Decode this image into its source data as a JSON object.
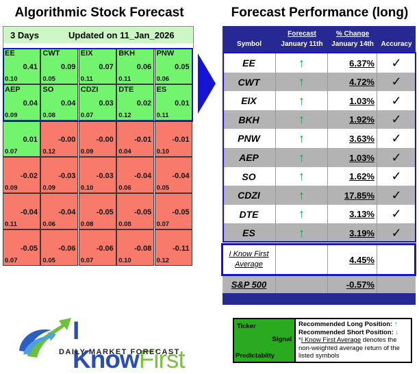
{
  "left_panel": {
    "title": "Algorithmic Stock Forecast",
    "horizon": "3 Days",
    "updated": "Updated on 11_Jan_2026",
    "cells": [
      {
        "symbol": "EE",
        "signal": "0.41",
        "predictability": "0.10",
        "color": "green"
      },
      {
        "symbol": "CWT",
        "signal": "0.09",
        "predictability": "0.05",
        "color": "green"
      },
      {
        "symbol": "EIX",
        "signal": "0.07",
        "predictability": "0.11",
        "color": "green"
      },
      {
        "symbol": "BKH",
        "signal": "0.06",
        "predictability": "0.11",
        "color": "green"
      },
      {
        "symbol": "PNW",
        "signal": "0.05",
        "predictability": "0.06",
        "color": "green"
      },
      {
        "symbol": "AEP",
        "signal": "0.04",
        "predictability": "0.09",
        "color": "green"
      },
      {
        "symbol": "SO",
        "signal": "0.04",
        "predictability": "0.08",
        "color": "green"
      },
      {
        "symbol": "CDZI",
        "signal": "0.03",
        "predictability": "0.07",
        "color": "green"
      },
      {
        "symbol": "DTE",
        "signal": "0.02",
        "predictability": "0.12",
        "color": "green"
      },
      {
        "symbol": "ES",
        "signal": "0.01",
        "predictability": "0.11",
        "color": "green"
      },
      {
        "symbol": "",
        "signal": "0.01",
        "predictability": "0.07",
        "color": "green"
      },
      {
        "symbol": "",
        "signal": "-0.00",
        "predictability": "0.12",
        "color": "red"
      },
      {
        "symbol": "",
        "signal": "-0.00",
        "predictability": "0.09",
        "color": "red"
      },
      {
        "symbol": "",
        "signal": "-0.01",
        "predictability": "0.04",
        "color": "red"
      },
      {
        "symbol": "",
        "signal": "-0.01",
        "predictability": "0.10",
        "color": "red"
      },
      {
        "symbol": "",
        "signal": "-0.02",
        "predictability": "0.09",
        "color": "red"
      },
      {
        "symbol": "",
        "signal": "-0.03",
        "predictability": "0.09",
        "color": "red"
      },
      {
        "symbol": "",
        "signal": "-0.03",
        "predictability": "0.10",
        "color": "red"
      },
      {
        "symbol": "",
        "signal": "-0.04",
        "predictability": "0.06",
        "color": "red"
      },
      {
        "symbol": "",
        "signal": "-0.04",
        "predictability": "0.05",
        "color": "red"
      },
      {
        "symbol": "",
        "signal": "-0.04",
        "predictability": "0.11",
        "color": "red"
      },
      {
        "symbol": "",
        "signal": "-0.04",
        "predictability": "0.06",
        "color": "red"
      },
      {
        "symbol": "",
        "signal": "-0.05",
        "predictability": "0.08",
        "color": "red"
      },
      {
        "symbol": "",
        "signal": "-0.05",
        "predictability": "0.08",
        "color": "red"
      },
      {
        "symbol": "",
        "signal": "-0.05",
        "predictability": "0.07",
        "color": "red"
      },
      {
        "symbol": "",
        "signal": "-0.05",
        "predictability": "0.07",
        "color": "red"
      },
      {
        "symbol": "",
        "signal": "-0.06",
        "predictability": "0.05",
        "color": "red"
      },
      {
        "symbol": "",
        "signal": "-0.06",
        "predictability": "0.07",
        "color": "red"
      },
      {
        "symbol": "",
        "signal": "-0.08",
        "predictability": "0.10",
        "color": "red"
      },
      {
        "symbol": "",
        "signal": "-0.11",
        "predictability": "0.12",
        "color": "red"
      }
    ]
  },
  "right_panel": {
    "title": "Forecast Performance (long)",
    "columns": {
      "symbol": "Symbol",
      "forecast_top": "Forecast",
      "forecast_date": "January 11th",
      "change_top": "% Change",
      "change_date": "January 14th",
      "accuracy": "Accuracy"
    },
    "rows": [
      {
        "symbol": "EE",
        "forecast": "↑",
        "change": "6.37%",
        "accuracy": "✓"
      },
      {
        "symbol": "CWT",
        "forecast": "↑",
        "change": "4.72%",
        "accuracy": "✓"
      },
      {
        "symbol": "EIX",
        "forecast": "↑",
        "change": "1.03%",
        "accuracy": "✓"
      },
      {
        "symbol": "BKH",
        "forecast": "↑",
        "change": "1.92%",
        "accuracy": "✓"
      },
      {
        "symbol": "PNW",
        "forecast": "↑",
        "change": "3.63%",
        "accuracy": "✓"
      },
      {
        "symbol": "AEP",
        "forecast": "↑",
        "change": "1.03%",
        "accuracy": "✓"
      },
      {
        "symbol": "SO",
        "forecast": "↑",
        "change": "1.62%",
        "accuracy": "✓"
      },
      {
        "symbol": "CDZI",
        "forecast": "↑",
        "change": "17.85%",
        "accuracy": "✓"
      },
      {
        "symbol": "DTE",
        "forecast": "↑",
        "change": "3.13%",
        "accuracy": "✓"
      },
      {
        "symbol": "ES",
        "forecast": "↑",
        "change": "3.19%",
        "accuracy": "✓"
      }
    ],
    "average": {
      "label_line1": "I Know First",
      "label_line2": "Average",
      "change": "4.45%"
    },
    "benchmark": {
      "label": "S&P 500",
      "change": "-0.57%"
    }
  },
  "legend": {
    "ticker": "Ticker",
    "signal": "Signal",
    "predictability": "Predictabilty",
    "long_label": "Recommended Long Position:",
    "long_icon": "↑",
    "short_label": "Recommended Short Position:",
    "short_icon": "↓",
    "note_prefix": "*",
    "note_link": "I Know First Average",
    "note_rest": " denotes the non-weighted average return of the listed symbols"
  },
  "logo": {
    "brand_part1": "I Know",
    "brand_part2": "First",
    "tagline": "DAILY MARKET FORECAST"
  },
  "colors": {
    "green_cell": "#73f46e",
    "red_cell": "#f77a6a",
    "header_navy": "#252991",
    "outline_blue": "#1616c8",
    "up_arrow": "#1a9a4c",
    "down_arrow": "#e03030"
  }
}
